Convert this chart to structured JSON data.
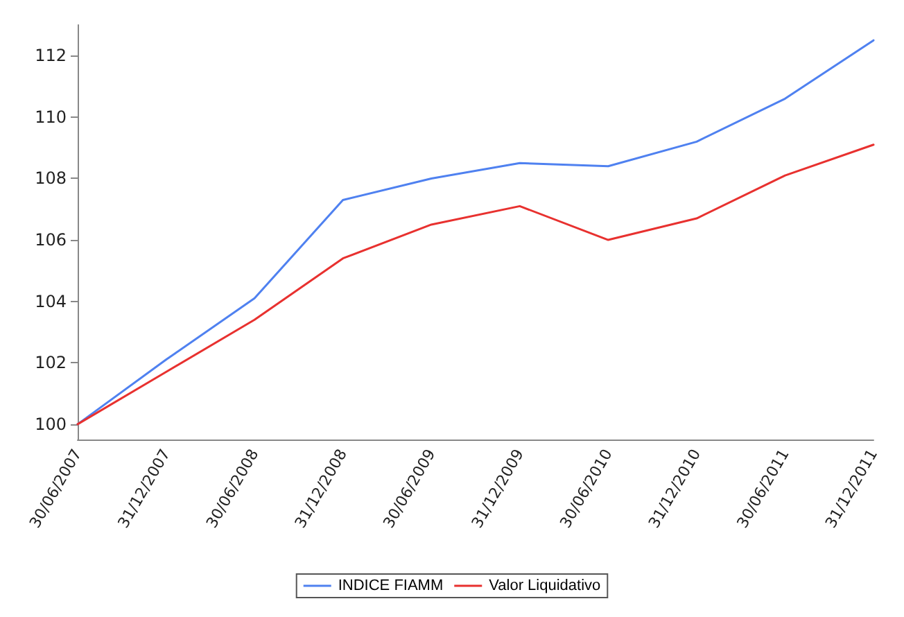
{
  "chart_data": {
    "type": "line",
    "categories": [
      "30/06/2007",
      "31/12/2007",
      "30/06/2008",
      "31/12/2008",
      "30/06/2009",
      "31/12/2009",
      "30/06/2010",
      "31/12/2010",
      "30/06/2011",
      "31/12/2011"
    ],
    "series": [
      {
        "name": "INDICE FIAMM",
        "color": "#4f81f0",
        "values": [
          100,
          102.1,
          104.1,
          107.3,
          108.0,
          108.5,
          108.4,
          109.2,
          110.6,
          112.5
        ]
      },
      {
        "name": "Valor Liquidativo",
        "color": "#e8312f",
        "values": [
          100,
          101.7,
          103.4,
          105.4,
          106.5,
          107.1,
          106.0,
          106.7,
          108.1,
          109.1
        ]
      }
    ],
    "ylim": [
      99.5,
      113
    ],
    "yticks": [
      100,
      102,
      104,
      106,
      108,
      110,
      112
    ],
    "grid": false,
    "legend": "bottom",
    "marker": "none",
    "line_style": "solid"
  }
}
